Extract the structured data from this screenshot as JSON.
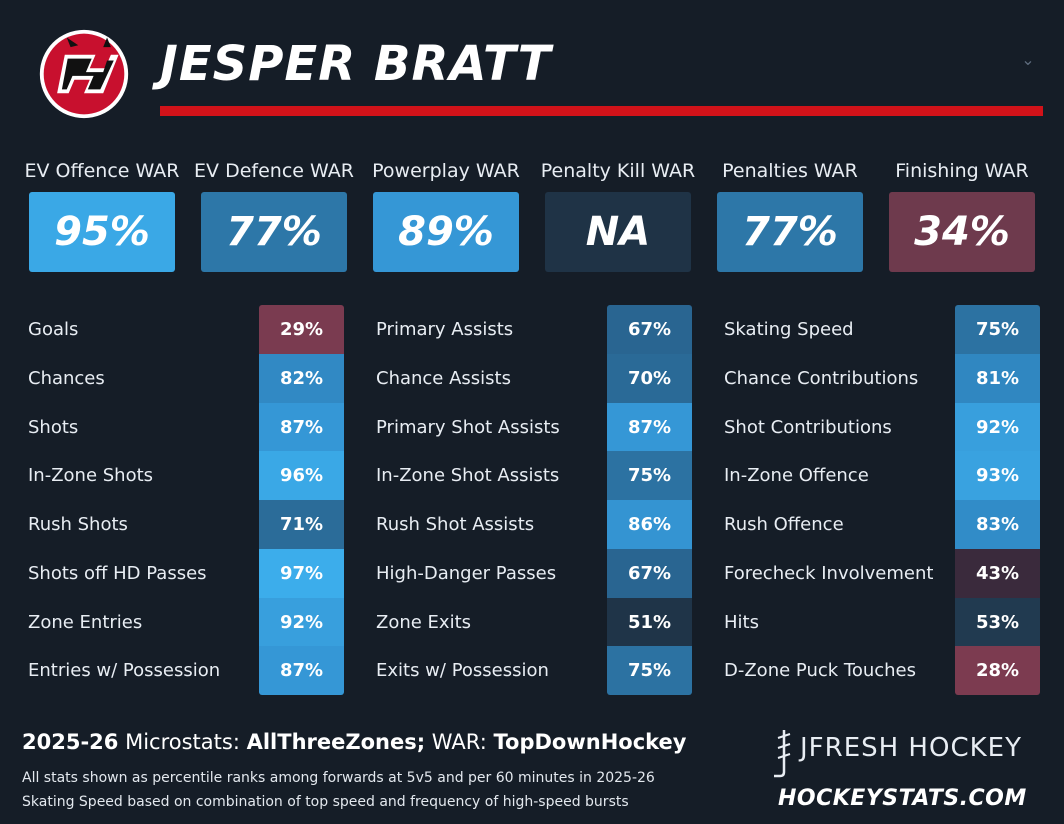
{
  "player": {
    "name": "JESPER BRATT"
  },
  "team_logo": {
    "icon": "new-jersey-devils-logo"
  },
  "war": [
    {
      "label": "EV Offence WAR",
      "value": "95%",
      "color": "#3aa8e6"
    },
    {
      "label": "EV Defence WAR",
      "value": "77%",
      "color": "#2d77a8"
    },
    {
      "label": "Powerplay WAR",
      "value": "89%",
      "color": "#3597d6"
    },
    {
      "label": "Penalty Kill WAR",
      "value": "NA",
      "color": "#1f3346"
    },
    {
      "label": "Penalties WAR",
      "value": "77%",
      "color": "#2d77a8"
    },
    {
      "label": "Finishing WAR",
      "value": "34%",
      "color": "#6e3a4d"
    }
  ],
  "columns": [
    {
      "rows": [
        {
          "label": "Goals",
          "value": "29%",
          "color": "#7a3b50"
        },
        {
          "label": "Chances",
          "value": "82%",
          "color": "#3189c4"
        },
        {
          "label": "Shots",
          "value": "87%",
          "color": "#3597d6"
        },
        {
          "label": "In-Zone Shots",
          "value": "96%",
          "color": "#3aa8e6"
        },
        {
          "label": "Rush Shots",
          "value": "71%",
          "color": "#2b6c99"
        },
        {
          "label": "Shots off HD Passes",
          "value": "97%",
          "color": "#3cadeb"
        },
        {
          "label": "Zone Entries",
          "value": "92%",
          "color": "#389fdd"
        },
        {
          "label": "Entries w/ Possession",
          "value": "87%",
          "color": "#3597d6"
        }
      ]
    },
    {
      "rows": [
        {
          "label": "Primary Assists",
          "value": "67%",
          "color": "#296591"
        },
        {
          "label": "Chance Assists",
          "value": "70%",
          "color": "#2a6a97"
        },
        {
          "label": "Primary Shot Assists",
          "value": "87%",
          "color": "#3597d6"
        },
        {
          "label": "In-Zone Shot Assists",
          "value": "75%",
          "color": "#2c72a2"
        },
        {
          "label": "Rush Shot Assists",
          "value": "86%",
          "color": "#3494d2"
        },
        {
          "label": "High-Danger Passes",
          "value": "67%",
          "color": "#296591"
        },
        {
          "label": "Zone Exits",
          "value": "51%",
          "color": "#1f3448"
        },
        {
          "label": "Exits w/ Possession",
          "value": "75%",
          "color": "#2c72a2"
        }
      ]
    },
    {
      "rows": [
        {
          "label": "Skating Speed",
          "value": "75%",
          "color": "#2c72a2"
        },
        {
          "label": "Chance Contributions",
          "value": "81%",
          "color": "#3087c1"
        },
        {
          "label": "Shot Contributions",
          "value": "92%",
          "color": "#389fdd"
        },
        {
          "label": "In-Zone Offence",
          "value": "93%",
          "color": "#39a2e0"
        },
        {
          "label": "Rush Offence",
          "value": "83%",
          "color": "#318cc8"
        },
        {
          "label": "Forecheck Involvement",
          "value": "43%",
          "color": "#3a2a3c"
        },
        {
          "label": "Hits",
          "value": "53%",
          "color": "#213a50"
        },
        {
          "label": "D-Zone Puck Touches",
          "value": "28%",
          "color": "#7c3b50"
        }
      ]
    }
  ],
  "footer": {
    "season": "2025-26",
    "micro_label": "Microstats:",
    "micro_source": "AllThreeZones;",
    "war_label": "WAR:",
    "war_source": "TopDownHockey",
    "note1": "All stats shown as percentile ranks among forwards at 5v5 and per 60 minutes in 2025-26",
    "note2": "Skating Speed based on combination of top speed and frequency of high-speed bursts",
    "brand": "JFRESH HOCKEY",
    "site": "HOCKEYSTATS.COM"
  }
}
